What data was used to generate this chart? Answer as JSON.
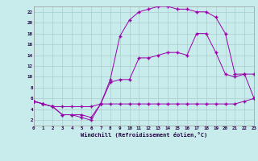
{
  "xlabel": "Windchill (Refroidissement éolien,°C)",
  "bg_color": "#c8ecec",
  "line_color": "#9900aa",
  "grid_color": "#aacccc",
  "xlim": [
    0,
    23
  ],
  "ylim": [
    1,
    23
  ],
  "xticks": [
    0,
    1,
    2,
    3,
    4,
    5,
    6,
    7,
    8,
    9,
    10,
    11,
    12,
    13,
    14,
    15,
    16,
    17,
    18,
    19,
    20,
    21,
    22,
    23
  ],
  "yticks": [
    2,
    4,
    6,
    8,
    10,
    12,
    14,
    16,
    18,
    20,
    22
  ],
  "line1_x": [
    0,
    1,
    2,
    3,
    4,
    5,
    6,
    7,
    8,
    9,
    10,
    11,
    12,
    13,
    14,
    15,
    16,
    17,
    18,
    19,
    20,
    21,
    22,
    23
  ],
  "line1_y": [
    5.5,
    5.0,
    4.5,
    4.5,
    4.5,
    4.5,
    4.5,
    5.0,
    5.0,
    5.0,
    5.0,
    5.0,
    5.0,
    5.0,
    5.0,
    5.0,
    5.0,
    5.0,
    5.0,
    5.0,
    5.0,
    5.0,
    5.5,
    6.0
  ],
  "line2_x": [
    0,
    1,
    2,
    3,
    4,
    5,
    6,
    7,
    8,
    9,
    10,
    11,
    12,
    13,
    14,
    15,
    16,
    17,
    18,
    19,
    20,
    21,
    22,
    23
  ],
  "line2_y": [
    5.5,
    5.0,
    4.5,
    3.0,
    3.0,
    3.0,
    2.5,
    5.0,
    9.0,
    9.5,
    9.5,
    13.5,
    13.5,
    14.0,
    14.5,
    14.5,
    14.0,
    18.0,
    18.0,
    14.5,
    10.5,
    10.0,
    10.5,
    6.0
  ],
  "line3_x": [
    0,
    1,
    2,
    3,
    4,
    5,
    6,
    7,
    8,
    9,
    10,
    11,
    12,
    13,
    14,
    15,
    16,
    17,
    18,
    19,
    20,
    21,
    22,
    23
  ],
  "line3_y": [
    5.5,
    5.0,
    4.5,
    3.0,
    3.0,
    2.5,
    2.0,
    5.0,
    9.5,
    17.5,
    20.5,
    22.0,
    22.5,
    23.0,
    23.0,
    22.5,
    22.5,
    22.0,
    22.0,
    21.0,
    18.0,
    10.5,
    10.5,
    10.5
  ]
}
